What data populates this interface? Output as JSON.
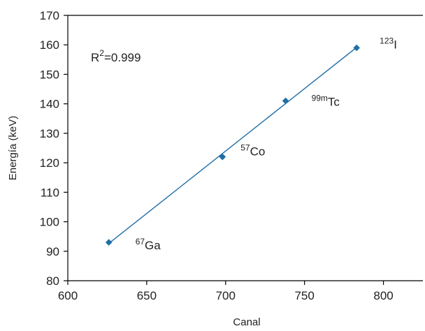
{
  "chart_data": {
    "type": "scatter",
    "xlabel": "Canal",
    "ylabel": "Energía (keV)",
    "xlim": [
      600,
      825
    ],
    "ylim": [
      80,
      170
    ],
    "xticks": [
      600,
      650,
      700,
      750,
      800
    ],
    "yticks": [
      80,
      90,
      100,
      110,
      120,
      130,
      140,
      150,
      160,
      170
    ],
    "points": [
      {
        "x": 626,
        "y": 93,
        "mass": "67",
        "symbol": "Ga"
      },
      {
        "x": 698,
        "y": 122,
        "mass": "57",
        "symbol": "Co"
      },
      {
        "x": 738,
        "y": 141,
        "mass": "99m",
        "symbol": "Tc"
      },
      {
        "x": 783,
        "y": 159,
        "mass": "123",
        "symbol": "I"
      }
    ],
    "fit_line": {
      "x_start": 626,
      "x_end": 783
    },
    "r2": {
      "base": "R",
      "sup": "2",
      "rest": "=0.999"
    },
    "grid": false,
    "colors": {
      "series": "#1f6fa5",
      "axis": "#000000",
      "text": "#222222"
    }
  }
}
